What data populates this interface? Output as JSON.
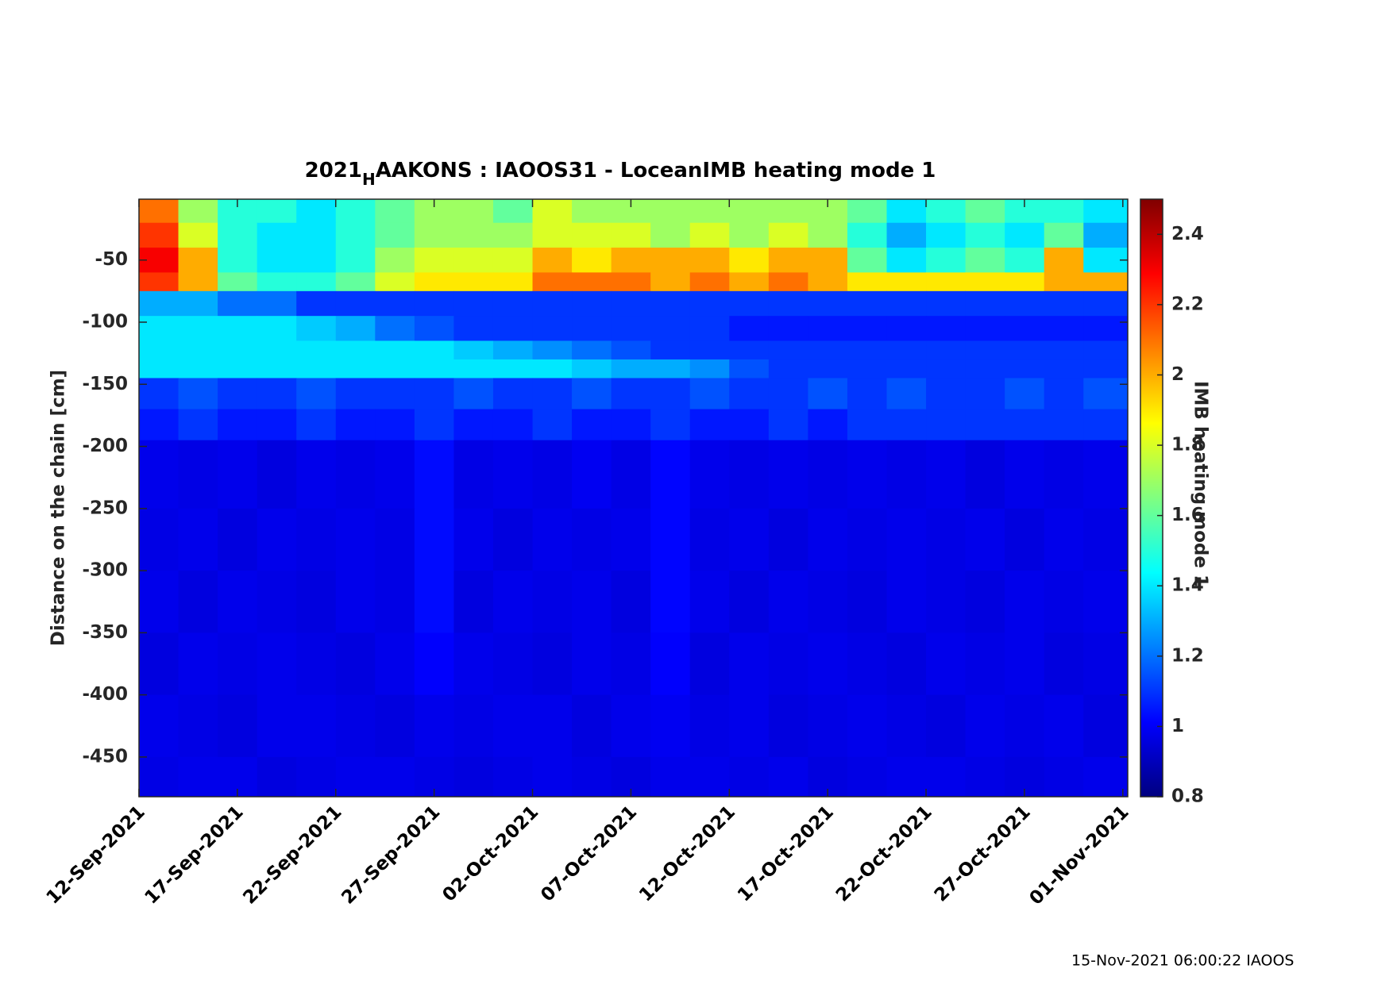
{
  "chart_data": {
    "type": "heatmap",
    "title": [
      "2021",
      "H",
      "AAKONS : IAOOS31 - LoceanIMB heating mode 1"
    ],
    "y_label": "Distance on the chain [cm]",
    "colorbar_label": "IMB heating mode 1",
    "footnote": "15-Nov-2021 06:00:22 IAOOS",
    "colormap": "jet",
    "xlim": [
      "2021-09-12",
      "2021-11-01T06:00"
    ],
    "xticks": [
      {
        "value": "2021-09-12",
        "label": "12-Sep-2021"
      },
      {
        "value": "2021-09-17",
        "label": "17-Sep-2021"
      },
      {
        "value": "2021-09-22",
        "label": "22-Sep-2021"
      },
      {
        "value": "2021-09-27",
        "label": "27-Sep-2021"
      },
      {
        "value": "2021-10-02",
        "label": "02-Oct-2021"
      },
      {
        "value": "2021-10-07",
        "label": "07-Oct-2021"
      },
      {
        "value": "2021-10-12",
        "label": "12-Oct-2021"
      },
      {
        "value": "2021-10-17",
        "label": "17-Oct-2021"
      },
      {
        "value": "2021-10-22",
        "label": "22-Oct-2021"
      },
      {
        "value": "2021-10-27",
        "label": "27-Oct-2021"
      },
      {
        "value": "2021-11-01",
        "label": "01-Nov-2021"
      }
    ],
    "ylim": [
      -482,
      -1
    ],
    "yticks": [
      -450,
      -400,
      -350,
      -300,
      -250,
      -200,
      -150,
      -100,
      -50
    ],
    "clim": [
      0.8,
      2.5
    ],
    "cticks": [
      0.8,
      1,
      1.2,
      1.4,
      1.6,
      1.8,
      2,
      2.2,
      2.4
    ],
    "x_bins": [
      "2021-09-12",
      "2021-09-14",
      "2021-09-16",
      "2021-09-18",
      "2021-09-20",
      "2021-09-22",
      "2021-09-24",
      "2021-09-26",
      "2021-09-28",
      "2021-09-30",
      "2021-10-02",
      "2021-10-04",
      "2021-10-06",
      "2021-10-08",
      "2021-10-10",
      "2021-10-12",
      "2021-10-14",
      "2021-10-16",
      "2021-10-18",
      "2021-10-20",
      "2021-10-22",
      "2021-10-24",
      "2021-10-26",
      "2021-10-28",
      "2021-10-30",
      "2021-11-01T06:00"
    ],
    "y_bins": [
      -1,
      -20,
      -40,
      -60,
      -75,
      -95,
      -115,
      -130,
      -145,
      -170,
      -195,
      -250,
      -300,
      -350,
      -400,
      -450,
      -482
    ],
    "values": [
      [
        2.1,
        1.7,
        1.5,
        1.5,
        1.4,
        1.5,
        1.6,
        1.7,
        1.7,
        1.6,
        1.8,
        1.7,
        1.7,
        1.7,
        1.7,
        1.7,
        1.7,
        1.7,
        1.6,
        1.4,
        1.5,
        1.6,
        1.5,
        1.5,
        1.4
      ],
      [
        2.2,
        1.8,
        1.5,
        1.4,
        1.4,
        1.5,
        1.6,
        1.7,
        1.7,
        1.7,
        1.8,
        1.8,
        1.8,
        1.7,
        1.8,
        1.7,
        1.8,
        1.7,
        1.5,
        1.3,
        1.4,
        1.5,
        1.4,
        1.6,
        1.3
      ],
      [
        2.3,
        2.0,
        1.5,
        1.4,
        1.4,
        1.5,
        1.7,
        1.8,
        1.8,
        1.8,
        2.0,
        1.9,
        2.0,
        2.0,
        2.0,
        1.9,
        2.0,
        2.0,
        1.6,
        1.4,
        1.5,
        1.6,
        1.5,
        2.0,
        1.4
      ],
      [
        2.2,
        2.0,
        1.6,
        1.5,
        1.5,
        1.6,
        1.8,
        1.9,
        1.9,
        1.9,
        2.1,
        2.1,
        2.1,
        2.0,
        2.1,
        2.0,
        2.1,
        2.0,
        1.9,
        1.9,
        1.9,
        1.9,
        1.9,
        2.0,
        2.0
      ],
      [
        1.3,
        1.3,
        1.2,
        1.2,
        1.1,
        1.1,
        1.1,
        1.1,
        1.1,
        1.1,
        1.1,
        1.1,
        1.1,
        1.1,
        1.1,
        1.1,
        1.1,
        1.1,
        1.1,
        1.1,
        1.1,
        1.1,
        1.1,
        1.1,
        1.1
      ],
      [
        1.4,
        1.4,
        1.4,
        1.4,
        1.35,
        1.3,
        1.2,
        1.15,
        1.1,
        1.1,
        1.1,
        1.1,
        1.1,
        1.1,
        1.1,
        1.05,
        1.05,
        1.05,
        1.05,
        1.05,
        1.05,
        1.05,
        1.05,
        1.05,
        1.05
      ],
      [
        1.4,
        1.4,
        1.4,
        1.4,
        1.4,
        1.4,
        1.4,
        1.4,
        1.35,
        1.3,
        1.25,
        1.2,
        1.15,
        1.1,
        1.1,
        1.1,
        1.1,
        1.1,
        1.1,
        1.1,
        1.1,
        1.1,
        1.1,
        1.1,
        1.1
      ],
      [
        1.4,
        1.4,
        1.4,
        1.4,
        1.4,
        1.4,
        1.4,
        1.4,
        1.4,
        1.4,
        1.4,
        1.35,
        1.3,
        1.3,
        1.25,
        1.15,
        1.1,
        1.1,
        1.1,
        1.1,
        1.1,
        1.1,
        1.1,
        1.1,
        1.1
      ],
      [
        1.1,
        1.15,
        1.1,
        1.1,
        1.15,
        1.1,
        1.1,
        1.1,
        1.15,
        1.1,
        1.1,
        1.15,
        1.1,
        1.1,
        1.15,
        1.1,
        1.1,
        1.15,
        1.1,
        1.15,
        1.1,
        1.1,
        1.15,
        1.1,
        1.15
      ],
      [
        1.05,
        1.1,
        1.05,
        1.05,
        1.1,
        1.05,
        1.05,
        1.1,
        1.05,
        1.05,
        1.1,
        1.05,
        1.05,
        1.1,
        1.05,
        1.05,
        1.1,
        1.05,
        1.1,
        1.1,
        1.1,
        1.1,
        1.1,
        1.1,
        1.1
      ],
      [
        0.98,
        0.97,
        0.98,
        0.96,
        0.98,
        0.97,
        0.98,
        1.03,
        0.97,
        0.98,
        0.97,
        0.99,
        0.97,
        1.02,
        0.98,
        0.97,
        0.98,
        0.97,
        0.98,
        0.97,
        0.98,
        0.96,
        0.98,
        0.97,
        0.98
      ],
      [
        0.97,
        0.98,
        0.96,
        0.98,
        0.97,
        0.98,
        0.97,
        1.03,
        0.98,
        0.96,
        0.98,
        0.97,
        0.98,
        1.02,
        0.97,
        0.98,
        0.96,
        0.98,
        0.97,
        0.98,
        0.97,
        0.98,
        0.96,
        0.98,
        0.97
      ],
      [
        0.98,
        0.96,
        0.98,
        0.97,
        0.96,
        0.98,
        0.97,
        1.03,
        0.96,
        0.98,
        0.97,
        0.98,
        0.96,
        1.02,
        0.98,
        0.96,
        0.98,
        0.97,
        0.96,
        0.98,
        0.97,
        0.96,
        0.98,
        0.97,
        0.98
      ],
      [
        0.96,
        0.98,
        0.97,
        0.98,
        0.97,
        0.96,
        0.98,
        1.01,
        0.98,
        0.97,
        0.96,
        0.98,
        0.97,
        1.01,
        0.96,
        0.98,
        0.97,
        0.98,
        0.97,
        0.96,
        0.98,
        0.97,
        0.98,
        0.96,
        0.97
      ],
      [
        0.98,
        0.97,
        0.96,
        0.98,
        0.98,
        0.97,
        0.96,
        0.98,
        0.97,
        0.98,
        0.98,
        0.96,
        0.98,
        0.99,
        0.97,
        0.98,
        0.96,
        0.97,
        0.98,
        0.97,
        0.96,
        0.98,
        0.97,
        0.98,
        0.96
      ],
      [
        0.97,
        0.98,
        0.98,
        0.96,
        0.97,
        0.98,
        0.98,
        0.97,
        0.96,
        0.97,
        0.98,
        0.97,
        0.96,
        0.98,
        0.98,
        0.97,
        0.98,
        0.96,
        0.97,
        0.98,
        0.98,
        0.97,
        0.96,
        0.97,
        0.98
      ]
    ]
  }
}
